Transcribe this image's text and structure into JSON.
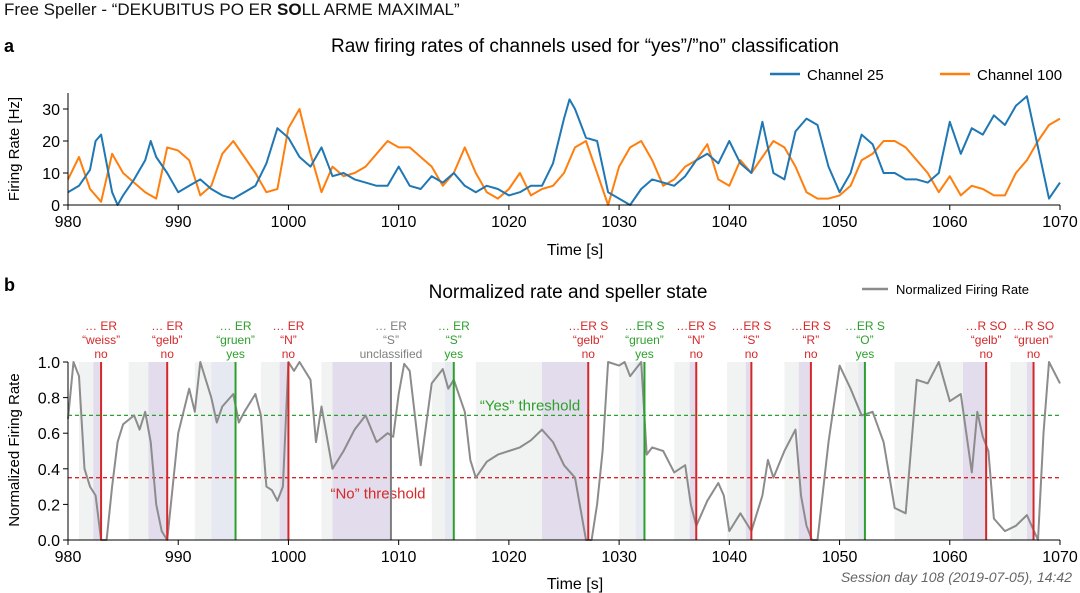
{
  "page": {
    "title_prefix": "Free Speller - “DEKUBITUS PO ER ",
    "title_bold": "SO",
    "title_suffix": "LL ARME MAXIMAL”",
    "session": "Session day 108 (2019-07-05), 14:42"
  },
  "colors": {
    "channel25": "#1f77b4",
    "channel100": "#ff7f0e",
    "normalized": "#8c8c8c",
    "no": "#d62728",
    "yes": "#2ca02c",
    "unclassified": "#7f7f7f",
    "no_shade": "#e2dcec",
    "yes_shade": "#e6e9f1",
    "light_shade": "#f1f2f2"
  },
  "chart_data": [
    {
      "panel": "a",
      "type": "line",
      "title": "Raw firing rates of channels used for “yes”/”no” classification",
      "xlabel": "Time [s]",
      "ylabel": "Firing Rate [Hz]",
      "xlim": [
        980,
        1070
      ],
      "ylim": [
        0,
        35
      ],
      "xticks": [
        980,
        990,
        1000,
        1010,
        1020,
        1030,
        1040,
        1050,
        1060,
        1070
      ],
      "yticks": [
        0,
        10,
        20,
        30
      ],
      "legend": "top-right",
      "series": [
        {
          "name": "Channel 25",
          "x": [
            980,
            981,
            982,
            982.5,
            983,
            984,
            984.5,
            985,
            986,
            987,
            987.5,
            988,
            989,
            990,
            991,
            992,
            993,
            994,
            995,
            996,
            997,
            998,
            999,
            1000,
            1001,
            1002,
            1003,
            1004,
            1005,
            1006,
            1007,
            1008,
            1009,
            1010,
            1011,
            1012,
            1013,
            1014,
            1015,
            1016,
            1017,
            1018,
            1019,
            1020,
            1021,
            1022,
            1023,
            1024,
            1025,
            1025.5,
            1026,
            1027,
            1028,
            1029,
            1030,
            1031,
            1032,
            1033,
            1034,
            1035,
            1036,
            1037,
            1038,
            1039,
            1040,
            1041,
            1042,
            1043,
            1044,
            1045,
            1046,
            1047,
            1048,
            1049,
            1050,
            1051,
            1052,
            1053,
            1054,
            1055,
            1056,
            1057,
            1058,
            1059,
            1060,
            1061,
            1062,
            1063,
            1064,
            1065,
            1066,
            1067,
            1068,
            1069,
            1070
          ],
          "values": [
            4,
            6,
            11,
            20,
            22,
            4,
            0,
            3,
            8,
            14,
            20,
            15,
            10,
            4,
            6,
            8,
            5,
            3,
            2,
            4,
            6,
            13,
            24,
            21,
            15,
            12,
            18,
            9,
            10,
            8,
            7,
            6,
            6,
            12,
            6,
            5,
            9,
            7,
            10,
            6,
            4,
            6,
            5,
            3,
            4,
            6,
            6,
            13,
            27,
            33,
            30,
            21,
            20,
            4,
            2,
            0,
            5,
            8,
            7,
            6,
            9,
            14,
            16,
            13,
            20,
            13,
            10,
            26,
            10,
            8,
            23,
            27,
            25,
            12,
            4,
            10,
            22,
            19,
            10,
            10,
            8,
            8,
            7,
            10,
            26,
            16,
            24,
            22,
            28,
            25,
            31,
            34,
            18,
            2,
            7
          ]
        },
        {
          "name": "Channel 100",
          "x": [
            980,
            981,
            982,
            983,
            984,
            985,
            986,
            987,
            988,
            989,
            990,
            991,
            992,
            993,
            994,
            995,
            996,
            997,
            998,
            999,
            1000,
            1001,
            1002,
            1003,
            1004,
            1005,
            1006,
            1007,
            1008,
            1009,
            1010,
            1011,
            1012,
            1013,
            1014,
            1015,
            1016,
            1017,
            1018,
            1019,
            1020,
            1021,
            1022,
            1023,
            1024,
            1025,
            1026,
            1027,
            1028,
            1029,
            1030,
            1031,
            1032,
            1033,
            1034,
            1035,
            1036,
            1037,
            1038,
            1039,
            1040,
            1041,
            1042,
            1043,
            1044,
            1045,
            1046,
            1047,
            1048,
            1049,
            1050,
            1051,
            1052,
            1053,
            1054,
            1055,
            1056,
            1057,
            1058,
            1059,
            1060,
            1061,
            1062,
            1063,
            1064,
            1065,
            1066,
            1067,
            1068,
            1069,
            1070
          ],
          "values": [
            8,
            15,
            5,
            1,
            16,
            10,
            7,
            4,
            2,
            18,
            17,
            14,
            3,
            6,
            16,
            20,
            15,
            10,
            4,
            5,
            24,
            30,
            16,
            4,
            12,
            9,
            10,
            12,
            16,
            20,
            18,
            18,
            15,
            12,
            6,
            10,
            18,
            10,
            4,
            2,
            5,
            10,
            3,
            5,
            6,
            10,
            18,
            20,
            10,
            0,
            12,
            18,
            20,
            14,
            6,
            8,
            12,
            14,
            19,
            8,
            6,
            14,
            10,
            15,
            20,
            18,
            12,
            4,
            2,
            2,
            3,
            6,
            14,
            16,
            20,
            20,
            18,
            14,
            10,
            4,
            9,
            3,
            6,
            5,
            3,
            3,
            10,
            14,
            20,
            25,
            27
          ]
        }
      ]
    },
    {
      "panel": "b",
      "type": "line",
      "title": "Normalized rate and speller state",
      "xlabel": "Time [s]",
      "ylabel": "Normalized Firing Rate",
      "xlim": [
        980,
        1070
      ],
      "ylim": [
        0,
        1.0
      ],
      "xticks": [
        980,
        990,
        1000,
        1010,
        1020,
        1030,
        1040,
        1050,
        1060,
        1070
      ],
      "yticks": [
        0.0,
        0.2,
        0.4,
        0.6,
        0.8,
        1.0
      ],
      "legend": "top-right",
      "series": [
        {
          "name": "Normalized Firing Rate",
          "x": [
            980,
            980.5,
            981,
            981.5,
            982,
            982.5,
            983,
            983.5,
            984,
            984.5,
            985,
            986,
            986.5,
            987,
            987.5,
            988,
            988.5,
            989,
            990,
            991,
            991.5,
            992,
            993,
            993.5,
            994,
            995,
            995.5,
            996,
            997,
            997.5,
            998,
            998.5,
            999,
            999.5,
            1000,
            1000.5,
            1001,
            1002,
            1002.5,
            1003,
            1004,
            1005,
            1006,
            1007,
            1008,
            1009,
            1009.5,
            1010,
            1010.5,
            1011,
            1012,
            1013,
            1014,
            1014.5,
            1015,
            1016,
            1016.5,
            1017,
            1018,
            1019,
            1020,
            1021,
            1022,
            1023,
            1024,
            1025,
            1026,
            1027,
            1027.5,
            1028,
            1028.5,
            1029,
            1030,
            1030.5,
            1031,
            1032,
            1032.5,
            1033,
            1034,
            1035,
            1036,
            1036.5,
            1037,
            1038,
            1039,
            1039.5,
            1040,
            1041,
            1042,
            1043,
            1043.5,
            1044,
            1045,
            1046,
            1046.5,
            1047,
            1047.5,
            1048,
            1049,
            1050,
            1051,
            1052,
            1053,
            1054,
            1055,
            1056,
            1057,
            1058,
            1059,
            1060,
            1061,
            1062,
            1062.5,
            1063,
            1063.5,
            1064,
            1065,
            1066,
            1067,
            1068,
            1068.5,
            1069,
            1070
          ],
          "values": [
            0.68,
            1.0,
            0.92,
            0.4,
            0.3,
            0.25,
            0.0,
            0.0,
            0.3,
            0.55,
            0.65,
            0.7,
            0.62,
            0.72,
            0.55,
            0.2,
            0.05,
            0.0,
            0.6,
            0.85,
            0.72,
            1.0,
            0.8,
            0.66,
            0.75,
            0.82,
            0.66,
            0.72,
            0.82,
            0.7,
            0.3,
            0.28,
            0.22,
            0.3,
            1.0,
            0.95,
            1.0,
            0.9,
            0.55,
            0.75,
            0.4,
            0.5,
            0.62,
            0.7,
            0.55,
            0.6,
            0.58,
            0.82,
            0.99,
            0.95,
            0.42,
            0.88,
            0.96,
            0.85,
            0.9,
            0.72,
            0.45,
            0.35,
            0.44,
            0.48,
            0.5,
            0.52,
            0.56,
            0.62,
            0.55,
            0.42,
            0.35,
            0.0,
            0.0,
            0.2,
            0.5,
            1.0,
            0.98,
            1.0,
            0.92,
            1.0,
            0.48,
            0.52,
            0.5,
            0.38,
            0.42,
            0.2,
            0.08,
            0.22,
            0.32,
            0.25,
            0.05,
            0.15,
            0.05,
            0.25,
            0.45,
            0.35,
            0.5,
            0.62,
            0.25,
            0.08,
            0.0,
            0.0,
            0.55,
            0.98,
            0.85,
            0.7,
            0.72,
            0.55,
            0.18,
            0.15,
            0.9,
            0.88,
            1.0,
            0.78,
            0.82,
            0.38,
            0.72,
            0.58,
            0.5,
            0.12,
            0.05,
            0.08,
            0.14,
            0.0,
            0.6,
            1.0,
            0.88
          ]
        }
      ],
      "thresholds": [
        {
          "label": "“Yes” threshold",
          "value": 0.7
        },
        {
          "label": "“No” threshold",
          "value": 0.35
        }
      ],
      "events": [
        {
          "t": 983.0,
          "state": "no",
          "lines": [
            "… ER",
            "“weiss”",
            "no"
          ],
          "shade": [
            982.3,
            983.0
          ]
        },
        {
          "t": 989.0,
          "state": "no",
          "lines": [
            "… ER",
            "“gelb”",
            "no"
          ],
          "shade": [
            987.3,
            989.0
          ]
        },
        {
          "t": 995.2,
          "state": "yes",
          "lines": [
            "… ER",
            "“gruen”",
            "yes"
          ],
          "shade": [
            993.0,
            995.2
          ]
        },
        {
          "t": 1000.0,
          "state": "no",
          "lines": [
            "… ER",
            "“N”",
            "no"
          ],
          "shade": [
            999.2,
            1000.0
          ]
        },
        {
          "t": 1009.3,
          "state": "unclassified",
          "lines": [
            "… ER",
            "“S”",
            "unclassified"
          ],
          "shade": [
            1004.0,
            1009.3
          ]
        },
        {
          "t": 1015.0,
          "state": "yes",
          "lines": [
            "… ER",
            "“S”",
            "yes"
          ],
          "shade": [
            1014.2,
            1015.0
          ]
        },
        {
          "t": 1027.2,
          "state": "no",
          "lines": [
            "…ER S",
            "“gelb”",
            "no"
          ],
          "shade": [
            1023.0,
            1027.2
          ]
        },
        {
          "t": 1032.3,
          "state": "yes",
          "lines": [
            "…ER S",
            "“gruen”",
            "yes"
          ],
          "shade": [
            1031.5,
            1032.3
          ]
        },
        {
          "t": 1037.0,
          "state": "no",
          "lines": [
            "…ER S",
            "“N”",
            "no"
          ],
          "shade": [
            1036.4,
            1037.0
          ]
        },
        {
          "t": 1042.0,
          "state": "no",
          "lines": [
            "…ER S",
            "“S”",
            "no"
          ],
          "shade": [
            1041.5,
            1042.0
          ]
        },
        {
          "t": 1047.4,
          "state": "no",
          "lines": [
            "…ER S",
            "“R”",
            "no"
          ],
          "shade": [
            1046.3,
            1047.4
          ]
        },
        {
          "t": 1052.3,
          "state": "yes",
          "lines": [
            "…ER S",
            "“O”",
            "yes"
          ],
          "shade": [
            1051.7,
            1052.3
          ]
        },
        {
          "t": 1063.3,
          "state": "no",
          "lines": [
            "…R SO",
            "“gelb”",
            "no"
          ],
          "shade": [
            1061.2,
            1063.3
          ]
        },
        {
          "t": 1067.6,
          "state": "no",
          "lines": [
            "…R SO",
            "“gruen”",
            "no"
          ],
          "shade": [
            1067.0,
            1067.6
          ]
        }
      ],
      "light_bands": [
        [
          981.0,
          982.3
        ],
        [
          985.5,
          987.3
        ],
        [
          991.5,
          993.0
        ],
        [
          997.5,
          999.2
        ],
        [
          1003.0,
          1004.0
        ],
        [
          1013.0,
          1014.2
        ],
        [
          1017.0,
          1023.0
        ],
        [
          1030.0,
          1031.5
        ],
        [
          1035.0,
          1036.4
        ],
        [
          1039.8,
          1041.5
        ],
        [
          1045.0,
          1046.3
        ],
        [
          1050.5,
          1051.7
        ],
        [
          1055.0,
          1061.2
        ],
        [
          1065.5,
          1067.0
        ]
      ]
    }
  ]
}
